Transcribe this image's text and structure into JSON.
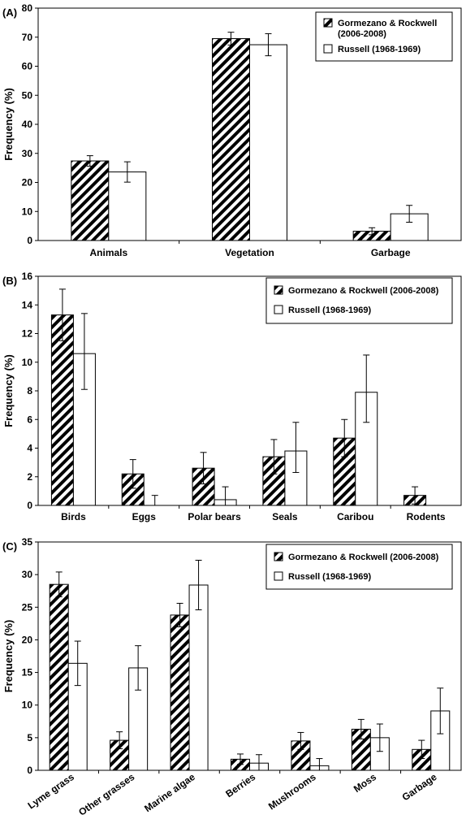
{
  "chart_data": [
    {
      "panel": "(A)",
      "type": "bar",
      "ylabel": "Frequency (%)",
      "ylim": [
        0,
        80
      ],
      "yticks": [
        0,
        10,
        20,
        30,
        40,
        50,
        60,
        70,
        80
      ],
      "categories": [
        "Animals",
        "Vegetation",
        "Garbage"
      ],
      "series": [
        {
          "name": "Gormezano & Rockwell (2006-2008)",
          "pattern": "hatched",
          "values": [
            27.4,
            69.5,
            3.2
          ],
          "errors": [
            1.8,
            2.2,
            1.2
          ]
        },
        {
          "name": "Russell (1968-1969)",
          "pattern": "open",
          "values": [
            23.6,
            67.4,
            9.2
          ],
          "errors": [
            3.5,
            3.8,
            2.9
          ]
        }
      ],
      "legend": {
        "position": "top-right",
        "entries": [
          "Gormezano & Rockwell",
          "(2006-2008)",
          "Russell (1968-1969)"
        ]
      }
    },
    {
      "panel": "(B)",
      "type": "bar",
      "ylabel": "Frequency (%)",
      "ylim": [
        0,
        16
      ],
      "yticks": [
        0,
        2,
        4,
        6,
        8,
        10,
        12,
        14,
        16
      ],
      "categories": [
        "Birds",
        "Eggs",
        "Polar bears",
        "Seals",
        "Caribou",
        "Rodents"
      ],
      "series": [
        {
          "name": "Gormezano & Rockwell (2006-2008)",
          "pattern": "hatched",
          "values": [
            13.3,
            2.2,
            2.6,
            3.4,
            4.7,
            0.7
          ],
          "errors": [
            1.8,
            1.0,
            1.1,
            1.2,
            1.3,
            0.6
          ]
        },
        {
          "name": "Russell (1968-1969)",
          "pattern": "open",
          "values": [
            10.6,
            0,
            0.4,
            3.8,
            7.9,
            0
          ],
          "errors": [
            2.8,
            0.7,
            0.9,
            2.0,
            2.6,
            0
          ],
          "errors_lower": [
            2.5,
            0,
            0.4,
            1.5,
            2.1,
            0
          ]
        }
      ],
      "legend": {
        "position": "top-right",
        "entries": [
          "Gormezano & Rockwell (2006-2008)",
          "Russell (1968-1969)"
        ]
      }
    },
    {
      "panel": "(C)",
      "type": "bar",
      "ylabel": "Frequency (%)",
      "ylim": [
        0,
        35
      ],
      "yticks": [
        0,
        5,
        10,
        15,
        20,
        25,
        30,
        35
      ],
      "categories": [
        "Lyme grass",
        "Other grasses",
        "Marine algae",
        "Berries",
        "Mushrooms",
        "Moss",
        "Garbage"
      ],
      "series": [
        {
          "name": "Gormezano & Rockwell (2006-2008)",
          "pattern": "hatched",
          "values": [
            28.5,
            4.6,
            23.8,
            1.7,
            4.5,
            6.3,
            3.2
          ],
          "errors": [
            1.9,
            1.3,
            1.8,
            0.8,
            1.3,
            1.5,
            1.4
          ]
        },
        {
          "name": "Russell (1968-1969)",
          "pattern": "open",
          "values": [
            16.4,
            15.7,
            28.4,
            1.1,
            0.7,
            5.0,
            9.1
          ],
          "errors": [
            3.4,
            3.4,
            3.8,
            1.3,
            1.1,
            2.1,
            3.5
          ]
        }
      ],
      "legend": {
        "position": "top-right",
        "entries": [
          "Gormezano & Rockwell (2006-2008)",
          "Russell (1968-1969)"
        ]
      }
    }
  ]
}
